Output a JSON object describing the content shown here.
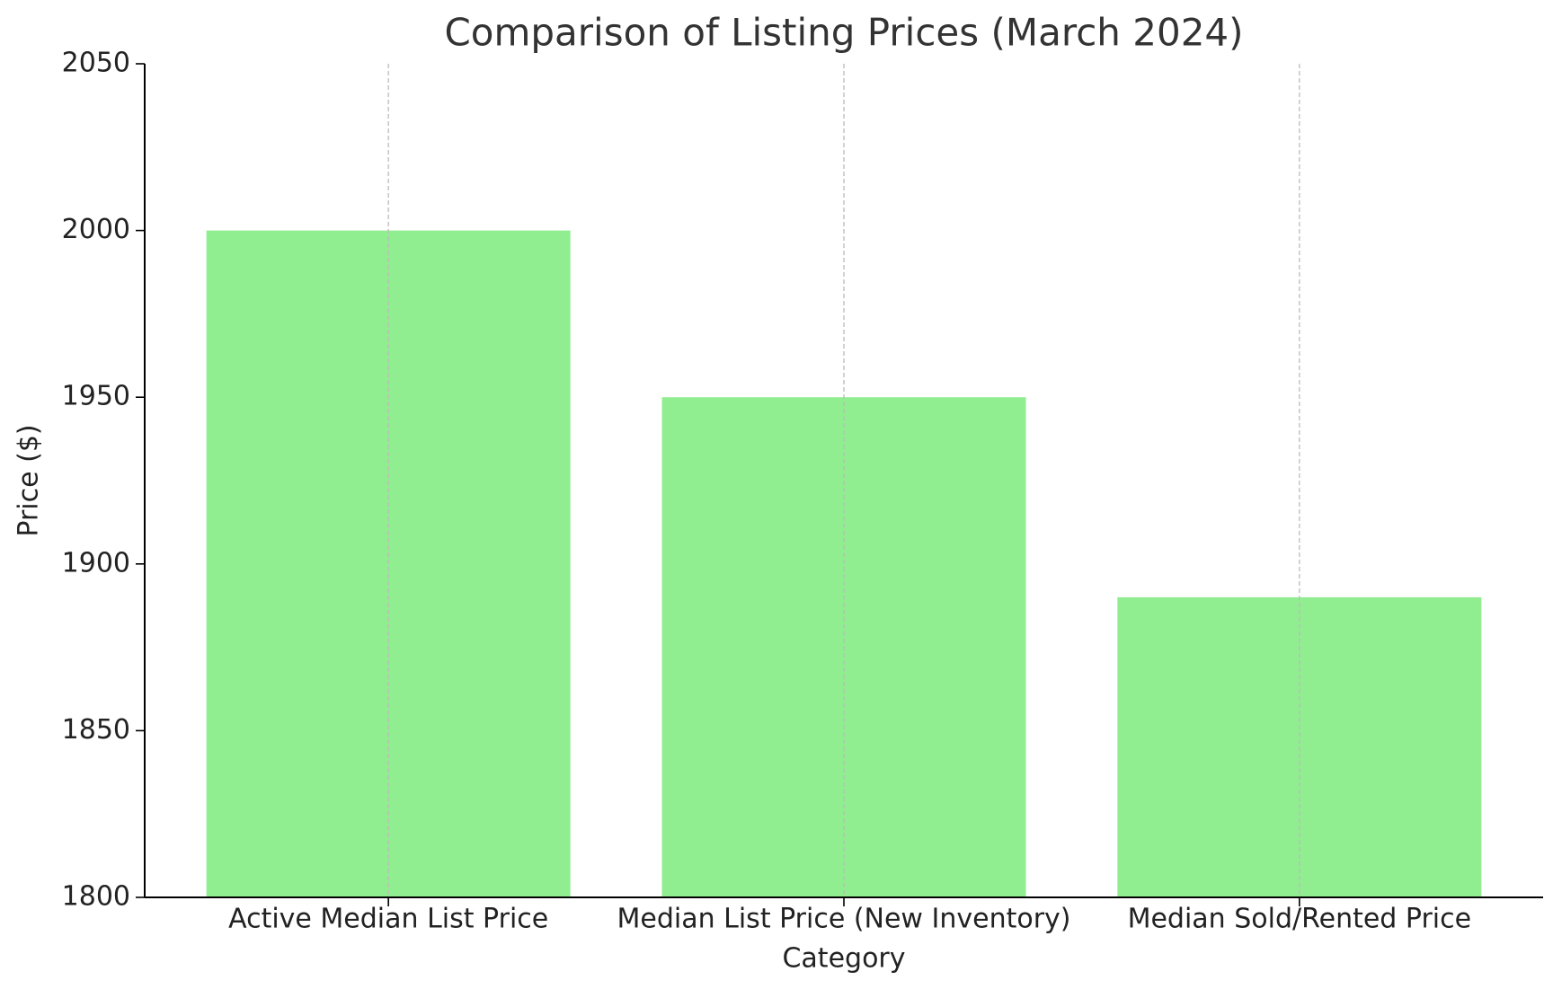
{
  "chart_data": {
    "type": "bar",
    "title": "Comparison of Listing Prices (March 2024)",
    "x_label": "Category",
    "y_label": "Price ($)",
    "categories": [
      "Active Median List Price",
      "Median List Price (New Inventory)",
      "Median Sold/Rented Price"
    ],
    "values": [
      2000,
      1950,
      1890
    ],
    "color": "#90ee90",
    "ylim": [
      1800,
      2050
    ],
    "yticks": [
      1800,
      1850,
      1900,
      1950,
      2000,
      2050
    ],
    "grid": "x"
  }
}
